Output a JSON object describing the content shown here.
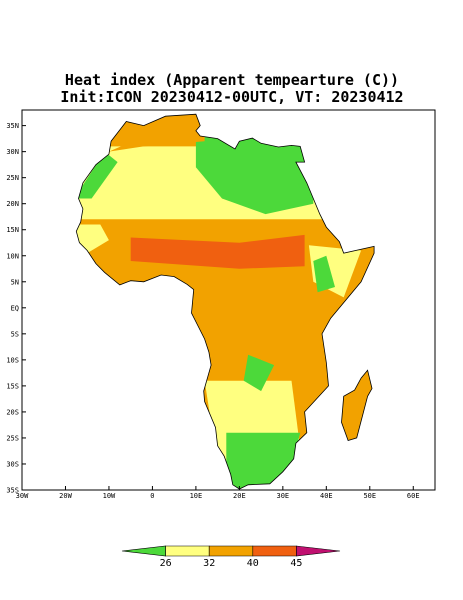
{
  "title": "Heat index (Apparent tempearture (C))",
  "subtitle": "Init:ICON 20230412-00UTC, VT: 20230412",
  "map": {
    "xlim": [
      -30,
      65
    ],
    "ylim": [
      -35,
      38
    ],
    "xticks": [
      {
        "value": -30,
        "label": "30W"
      },
      {
        "value": -20,
        "label": "20W"
      },
      {
        "value": -10,
        "label": "10W"
      },
      0,
      {
        "value": 10,
        "label": "10E"
      },
      {
        "value": 20,
        "label": "20E"
      },
      {
        "value": 30,
        "label": "30E"
      },
      {
        "value": 40,
        "label": "40E"
      },
      {
        "value": 50,
        "label": "50E"
      },
      {
        "value": 60,
        "label": "60E"
      }
    ],
    "yticks": [
      {
        "value": 35,
        "label": "35N"
      },
      {
        "value": 30,
        "label": "30N"
      },
      {
        "value": 25,
        "label": "25N"
      },
      {
        "value": 20,
        "label": "20N"
      },
      {
        "value": 15,
        "label": "15N"
      },
      {
        "value": 10,
        "label": "10N"
      },
      {
        "value": 5,
        "label": "5N"
      },
      {
        "value": 0,
        "label": "EQ"
      },
      {
        "value": -5,
        "label": "5S"
      },
      {
        "value": -10,
        "label": "10S"
      },
      {
        "value": -15,
        "label": "15S"
      },
      {
        "value": -20,
        "label": "20S"
      },
      {
        "value": -25,
        "label": "25S"
      },
      {
        "value": -30,
        "label": "30S"
      },
      {
        "value": -35,
        "label": "35S"
      }
    ]
  },
  "colorbar": {
    "levels": [
      26,
      32,
      40,
      45
    ],
    "colors": [
      "#4cd93a",
      "#ffff80",
      "#f2a200",
      "#f06010",
      "#c01070"
    ]
  }
}
